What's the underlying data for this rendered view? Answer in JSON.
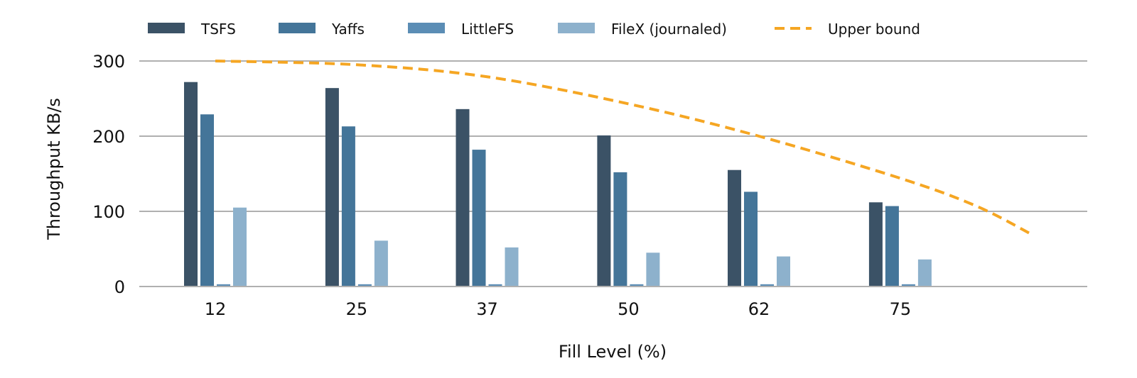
{
  "chart_data": {
    "type": "bar",
    "xlabel": "Fill Level (%)",
    "ylabel": "Throughput KB/s",
    "categories": [
      "12",
      "25",
      "37",
      "50",
      "62",
      "75"
    ],
    "ylim": [
      0,
      300
    ],
    "yticks": [
      0,
      100,
      200,
      300
    ],
    "grid": "horizontal",
    "legend_position": "top",
    "series": [
      {
        "name": "TSFS",
        "color": "#3b5266",
        "values": [
          272,
          264,
          236,
          201,
          155,
          112
        ]
      },
      {
        "name": "Yaffs",
        "color": "#447599",
        "values": [
          229,
          213,
          182,
          152,
          126,
          107
        ]
      },
      {
        "name": "LittleFS",
        "color": "#5b8db5",
        "values": [
          3,
          3,
          3,
          3,
          3,
          3
        ]
      },
      {
        "name": "FileX (journaled)",
        "color": "#8db1cc",
        "values": [
          105,
          61,
          52,
          45,
          40,
          36
        ]
      }
    ],
    "line": {
      "name": "Upper bound",
      "color": "#f5a623",
      "style": "dashed",
      "points": [
        {
          "x": 12,
          "y": 300
        },
        {
          "x": 25,
          "y": 295
        },
        {
          "x": 37,
          "y": 279
        },
        {
          "x": 50,
          "y": 243
        },
        {
          "x": 62,
          "y": 200
        },
        {
          "x": 75,
          "y": 144
        },
        {
          "x": 82,
          "y": 107
        },
        {
          "x": 87,
          "y": 70
        }
      ]
    }
  }
}
